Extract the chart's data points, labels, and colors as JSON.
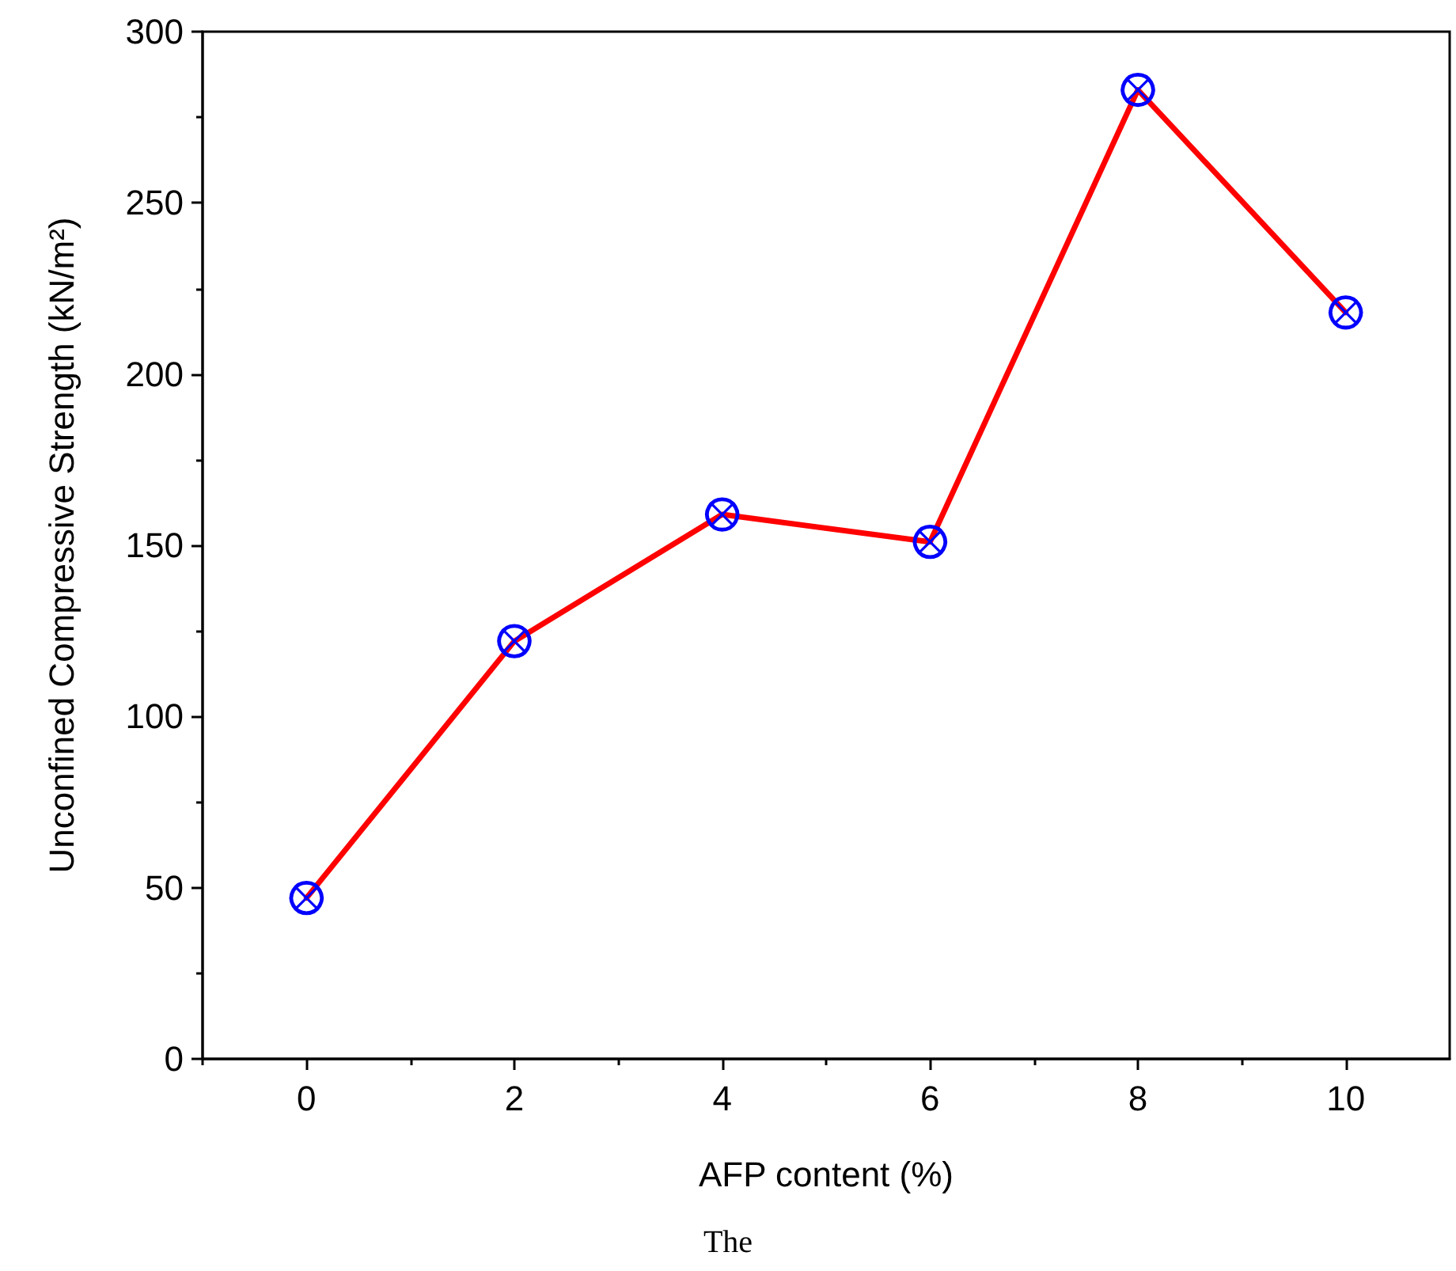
{
  "chart_data": {
    "type": "line",
    "xlabel": "AFP content (%)",
    "ylabel": "Unconfined Compressive Strength (kN/m²)",
    "x": [
      0,
      2,
      4,
      6,
      8,
      10
    ],
    "series": [
      {
        "color": "#ff0000",
        "values": [
          47,
          122,
          159,
          151,
          283,
          218
        ]
      }
    ],
    "marker": "cross",
    "line_style": "solid",
    "xlim": [
      -1,
      11
    ],
    "xticks": [
      0,
      2,
      4,
      6,
      8,
      10
    ],
    "ylim": [
      0,
      300
    ],
    "yticks": [
      0,
      50,
      100,
      150,
      200,
      250,
      300
    ],
    "grid": false,
    "annotations": [
      "The"
    ]
  }
}
